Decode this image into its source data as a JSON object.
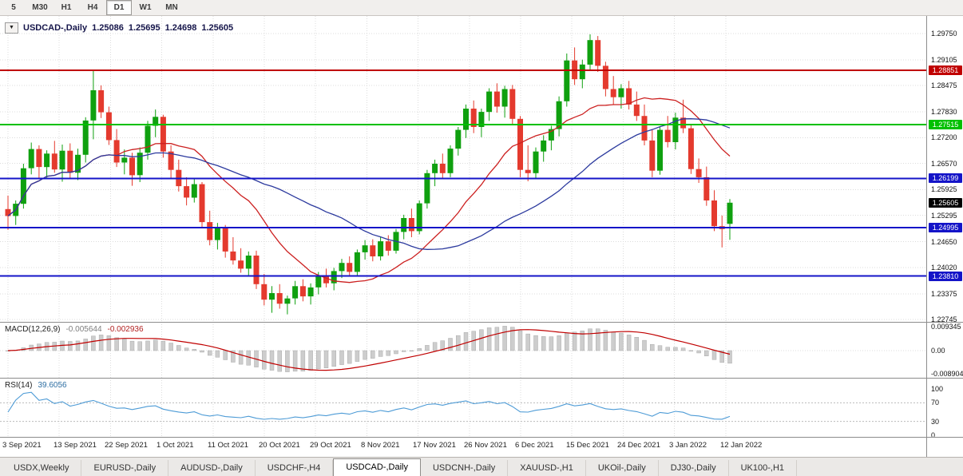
{
  "toolbar": {
    "timeframes": [
      {
        "label": "5",
        "active": false
      },
      {
        "label": "M30",
        "active": false
      },
      {
        "label": "H1",
        "active": false
      },
      {
        "label": "H4",
        "active": false
      },
      {
        "label": "D1",
        "active": true
      },
      {
        "label": "W1",
        "active": false
      },
      {
        "label": "MN",
        "active": false
      }
    ]
  },
  "chart_header": {
    "symbol": "USDCAD-,Daily",
    "open": "1.25086",
    "high": "1.25695",
    "low": "1.24698",
    "close": "1.25605"
  },
  "chart_data": {
    "type": "candlestick",
    "symbol": "USDCAD",
    "timeframe": "Daily",
    "x_labels": [
      "3 Sep 2021",
      "13 Sep 2021",
      "22 Sep 2021",
      "1 Oct 2021",
      "11 Oct 2021",
      "20 Oct 2021",
      "29 Oct 2021",
      "8 Nov 2021",
      "17 Nov 2021",
      "26 Nov 2021",
      "6 Dec 2021",
      "15 Dec 2021",
      "24 Dec 2021",
      "3 Jan 2022",
      "12 Jan 2022"
    ],
    "price_axis_ticks": [
      "1.29750",
      "1.29105",
      "1.28475",
      "1.27830",
      "1.27200",
      "1.26570",
      "1.25925",
      "1.25295",
      "1.24650",
      "1.24020",
      "1.23375",
      "1.22745"
    ],
    "candles": [
      [
        1.2545,
        1.2578,
        1.2494,
        1.2528
      ],
      [
        1.2528,
        1.2566,
        1.2506,
        1.2558
      ],
      [
        1.2558,
        1.2656,
        1.2546,
        1.2645
      ],
      [
        1.2645,
        1.2708,
        1.263,
        1.2692
      ],
      [
        1.2692,
        1.2701,
        1.262,
        1.2648
      ],
      [
        1.2648,
        1.2689,
        1.2622,
        1.2681
      ],
      [
        1.2681,
        1.2712,
        1.2634,
        1.2642
      ],
      [
        1.2642,
        1.2703,
        1.2612,
        1.2688
      ],
      [
        1.2688,
        1.2706,
        1.2621,
        1.2634
      ],
      [
        1.2634,
        1.2693,
        1.2616,
        1.2678
      ],
      [
        1.2678,
        1.277,
        1.2659,
        1.2762
      ],
      [
        1.2762,
        1.2886,
        1.2716,
        1.2836
      ],
      [
        1.2836,
        1.2848,
        1.2768,
        1.2782
      ],
      [
        1.2782,
        1.2796,
        1.2702,
        1.2714
      ],
      [
        1.2714,
        1.2741,
        1.2648,
        1.2659
      ],
      [
        1.2659,
        1.2691,
        1.263,
        1.2671
      ],
      [
        1.2671,
        1.2683,
        1.2602,
        1.2628
      ],
      [
        1.2628,
        1.2696,
        1.2611,
        1.2683
      ],
      [
        1.2683,
        1.2761,
        1.2666,
        1.2749
      ],
      [
        1.2749,
        1.2789,
        1.2721,
        1.2771
      ],
      [
        1.2771,
        1.2776,
        1.2671,
        1.2686
      ],
      [
        1.2686,
        1.2701,
        1.2619,
        1.2641
      ],
      [
        1.2641,
        1.2666,
        1.2588,
        1.2601
      ],
      [
        1.2601,
        1.2623,
        1.2554,
        1.2573
      ],
      [
        1.2573,
        1.2619,
        1.2561,
        1.2606
      ],
      [
        1.2606,
        1.2611,
        1.25,
        1.2513
      ],
      [
        1.2513,
        1.2541,
        1.2456,
        1.2469
      ],
      [
        1.2469,
        1.2511,
        1.2446,
        1.2499
      ],
      [
        1.2499,
        1.2506,
        1.2426,
        1.2441
      ],
      [
        1.2441,
        1.2476,
        1.2409,
        1.2419
      ],
      [
        1.2419,
        1.2449,
        1.2389,
        1.2399
      ],
      [
        1.2399,
        1.2441,
        1.2383,
        1.2431
      ],
      [
        1.2431,
        1.2443,
        1.2349,
        1.2361
      ],
      [
        1.2361,
        1.2386,
        1.2309,
        1.2323
      ],
      [
        1.2323,
        1.2356,
        1.2291,
        1.2339
      ],
      [
        1.2339,
        1.2361,
        1.2301,
        1.2313
      ],
      [
        1.2313,
        1.2333,
        1.2287,
        1.2326
      ],
      [
        1.2326,
        1.2369,
        1.2311,
        1.2356
      ],
      [
        1.2356,
        1.2373,
        1.2319,
        1.2331
      ],
      [
        1.2331,
        1.2363,
        1.2311,
        1.2353
      ],
      [
        1.2353,
        1.2391,
        1.2336,
        1.2383
      ],
      [
        1.2383,
        1.2399,
        1.2353,
        1.2363
      ],
      [
        1.2363,
        1.2401,
        1.2346,
        1.2393
      ],
      [
        1.2393,
        1.2423,
        1.2376,
        1.2413
      ],
      [
        1.2413,
        1.2429,
        1.2381,
        1.2391
      ],
      [
        1.2391,
        1.2446,
        1.2383,
        1.2439
      ],
      [
        1.2439,
        1.2469,
        1.2421,
        1.2456
      ],
      [
        1.2456,
        1.2471,
        1.2417,
        1.2429
      ],
      [
        1.2429,
        1.2476,
        1.2419,
        1.2466
      ],
      [
        1.2466,
        1.2481,
        1.2431,
        1.2443
      ],
      [
        1.2443,
        1.2496,
        1.2436,
        1.2489
      ],
      [
        1.2489,
        1.2531,
        1.2471,
        1.2523
      ],
      [
        1.2523,
        1.2546,
        1.2476,
        1.2491
      ],
      [
        1.2491,
        1.2566,
        1.2483,
        1.2559
      ],
      [
        1.2559,
        1.2641,
        1.2546,
        1.2633
      ],
      [
        1.2633,
        1.2666,
        1.2601,
        1.2656
      ],
      [
        1.2656,
        1.2681,
        1.2619,
        1.2633
      ],
      [
        1.2633,
        1.2701,
        1.2623,
        1.2693
      ],
      [
        1.2693,
        1.2746,
        1.2676,
        1.2739
      ],
      [
        1.2739,
        1.2801,
        1.2719,
        1.2791
      ],
      [
        1.2791,
        1.2811,
        1.2731,
        1.2746
      ],
      [
        1.2746,
        1.2791,
        1.2721,
        1.2783
      ],
      [
        1.2783,
        1.2841,
        1.2761,
        1.2833
      ],
      [
        1.2833,
        1.2853,
        1.2781,
        1.2796
      ],
      [
        1.2796,
        1.2847,
        1.2769,
        1.2839
      ],
      [
        1.2839,
        1.2849,
        1.2753,
        1.2766
      ],
      [
        1.2766,
        1.2773,
        1.2623,
        1.2641
      ],
      [
        1.2641,
        1.2701,
        1.2613,
        1.2633
      ],
      [
        1.2633,
        1.2696,
        1.2621,
        1.2686
      ],
      [
        1.2686,
        1.2726,
        1.2661,
        1.2713
      ],
      [
        1.2713,
        1.2749,
        1.2689,
        1.2741
      ],
      [
        1.2741,
        1.2821,
        1.2723,
        1.2809
      ],
      [
        1.2809,
        1.2926,
        1.2796,
        1.2909
      ],
      [
        1.2909,
        1.2941,
        1.2849,
        1.2863
      ],
      [
        1.2863,
        1.2911,
        1.2841,
        1.2899
      ],
      [
        1.2899,
        1.2973,
        1.2886,
        1.2959
      ],
      [
        1.2959,
        1.2969,
        1.2881,
        1.2896
      ],
      [
        1.2896,
        1.2906,
        1.2821,
        1.2839
      ],
      [
        1.2839,
        1.2871,
        1.2801,
        1.2819
      ],
      [
        1.2819,
        1.2851,
        1.2791,
        1.2841
      ],
      [
        1.2841,
        1.2859,
        1.2789,
        1.2801
      ],
      [
        1.2801,
        1.2833,
        1.2761,
        1.2773
      ],
      [
        1.2773,
        1.2801,
        1.2701,
        1.2713
      ],
      [
        1.2713,
        1.2741,
        1.2623,
        1.2639
      ],
      [
        1.2639,
        1.2746,
        1.2629,
        1.2739
      ],
      [
        1.2739,
        1.2773,
        1.2696,
        1.2709
      ],
      [
        1.2709,
        1.2781,
        1.2691,
        1.2769
      ],
      [
        1.2769,
        1.2813,
        1.2731,
        1.2743
      ],
      [
        1.2743,
        1.2751,
        1.2631,
        1.2643
      ],
      [
        1.2643,
        1.2669,
        1.2609,
        1.2623
      ],
      [
        1.2623,
        1.2649,
        1.2553,
        1.2566
      ],
      [
        1.2566,
        1.2591,
        1.2491,
        1.2503
      ],
      [
        1.2503,
        1.2529,
        1.2451,
        1.2496
      ],
      [
        1.25086,
        1.25695,
        1.24698,
        1.25605
      ]
    ],
    "hlines": [
      {
        "price": 1.28851,
        "label": "1.28851",
        "color": "#C00000"
      },
      {
        "price": 1.27515,
        "label": "1.27515",
        "color": "#00C000"
      },
      {
        "price": 1.26199,
        "label": "1.26199",
        "color": "#1414C8"
      },
      {
        "price": 1.24995,
        "label": "1.24995",
        "color": "#1414C8"
      },
      {
        "price": 1.2381,
        "label": "1.23810",
        "color": "#1414C8"
      }
    ],
    "current_price": {
      "price": 1.25605,
      "label": "1.25605",
      "color": "#000000"
    },
    "moving_averages": [
      {
        "period": 15,
        "colorKey": "ma_fast"
      },
      {
        "period": 34,
        "colorKey": "ma_slow"
      }
    ],
    "colors": {
      "bull": "#0FA00F",
      "bear": "#E43A2E",
      "ma_fast": "#CC2020",
      "ma_slow": "#2C3A9E",
      "macd_bar": "#CDCDCD",
      "macd_signal": "#C00000",
      "rsi_line": "#4D9BD6"
    },
    "indicators": {
      "macd": {
        "title": "MACD(12,26,9)",
        "value_main": "-0.005644",
        "value_signal": "-0.002936",
        "fast": 12,
        "slow": 26,
        "signal": 9,
        "axis_ticks": [
          "0.009345",
          "0.00",
          "-0.008904"
        ]
      },
      "rsi": {
        "title": "RSI(14)",
        "value": "39.6056",
        "period": 14,
        "axis_ticks": [
          "100",
          "70",
          "30",
          "0"
        ],
        "levels": [
          70,
          30
        ]
      }
    }
  },
  "bottom_tabs": [
    {
      "label": "USDX,Weekly",
      "active": false
    },
    {
      "label": "EURUSD-,Daily",
      "active": false
    },
    {
      "label": "AUDUSD-,Daily",
      "active": false
    },
    {
      "label": "USDCHF-,H4",
      "active": false
    },
    {
      "label": "USDCAD-,Daily",
      "active": true
    },
    {
      "label": "USDCNH-,Daily",
      "active": false
    },
    {
      "label": "XAUUSD-,H1",
      "active": false
    },
    {
      "label": "UKOil-,Daily",
      "active": false
    },
    {
      "label": "DJ30-,Daily",
      "active": false
    },
    {
      "label": "UK100-,H1",
      "active": false
    }
  ]
}
